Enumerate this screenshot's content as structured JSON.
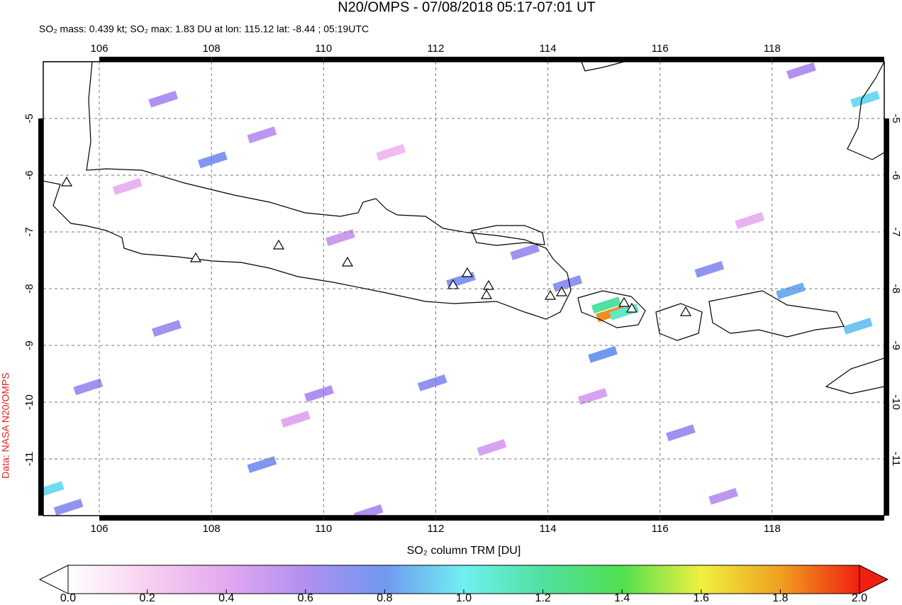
{
  "chart_data": {
    "type": "map",
    "title": "N20/OMPS - 07/08/2018 05:17-07:01 UT",
    "subtitle": "SO₂ mass: 0.439 kt; SO₂ max: 1.83 DU at lon: 115.12 lat: -8.44 ; 05:19UTC",
    "credit": "Data: NASA N20/OMPS",
    "colorbar_label": "SO₂ column TRM [DU]",
    "xlim": [
      105,
      120
    ],
    "ylim": [
      -12,
      -4
    ],
    "xticks": [
      106,
      108,
      110,
      112,
      114,
      116,
      118
    ],
    "yticks": [
      -5,
      -6,
      -7,
      -8,
      -9,
      -10,
      -11
    ],
    "grid": true,
    "colorbar_lim": [
      0,
      2
    ],
    "colorbar_ticks": [
      {
        "value": 0,
        "label": "0.0"
      },
      {
        "value": 0.2,
        "label": "0.2"
      },
      {
        "value": 0.4,
        "label": "0.4"
      },
      {
        "value": 0.6,
        "label": "0.6"
      },
      {
        "value": 0.8,
        "label": "0.8"
      },
      {
        "value": 1,
        "label": "1.0"
      },
      {
        "value": 1.2,
        "label": "1.2"
      },
      {
        "value": 1.4,
        "label": "1.4"
      },
      {
        "value": 1.6,
        "label": "1.6"
      },
      {
        "value": 1.8,
        "label": "1.8"
      },
      {
        "value": 2,
        "label": "2.0"
      }
    ],
    "colormap": [
      "#ffffff",
      "#f8d0f0",
      "#e4a8f0",
      "#b090f0",
      "#7098f0",
      "#70f0f0",
      "#50e0a0",
      "#50e050",
      "#f0f040",
      "#f0a020",
      "#f02010"
    ],
    "pixels": {
      "lon": [
        115.12,
        115.04,
        115.36,
        114.98,
        114.35,
        113.59,
        119.66,
        105.11,
        108.9,
        108.02,
        107.2,
        105.8,
        105.45,
        107.14,
        108.9,
        109.92,
        116.88,
        116.37,
        118.33,
        119.53,
        112.45,
        118.52,
        110.8,
        111.94,
        117.13,
        106.5,
        109.5,
        111.2,
        113.0,
        117.6,
        110.3,
        114.8
      ],
      "lat": [
        -8.44,
        -8.29,
        -8.41,
        -9.16,
        -7.91,
        -7.35,
        -4.66,
        -11.54,
        -11.1,
        -5.73,
        -8.7,
        -9.73,
        -11.85,
        -4.66,
        -5.29,
        -9.85,
        -7.66,
        -10.54,
        -8.04,
        -8.66,
        -7.85,
        -4.16,
        -11.95,
        -9.66,
        -11.66,
        -6.2,
        -10.3,
        -5.6,
        -10.8,
        -6.8,
        -7.1,
        -9.9
      ],
      "values": [
        1.83,
        1.2,
        1.1,
        0.8,
        0.7,
        0.65,
        0.95,
        0.95,
        0.75,
        0.75,
        0.65,
        0.65,
        0.7,
        0.6,
        0.55,
        0.6,
        0.7,
        0.65,
        0.85,
        0.9,
        0.75,
        0.6,
        0.6,
        0.7,
        0.55,
        0.35,
        0.4,
        0.3,
        0.45,
        0.35,
        0.5,
        0.45
      ]
    }
  }
}
